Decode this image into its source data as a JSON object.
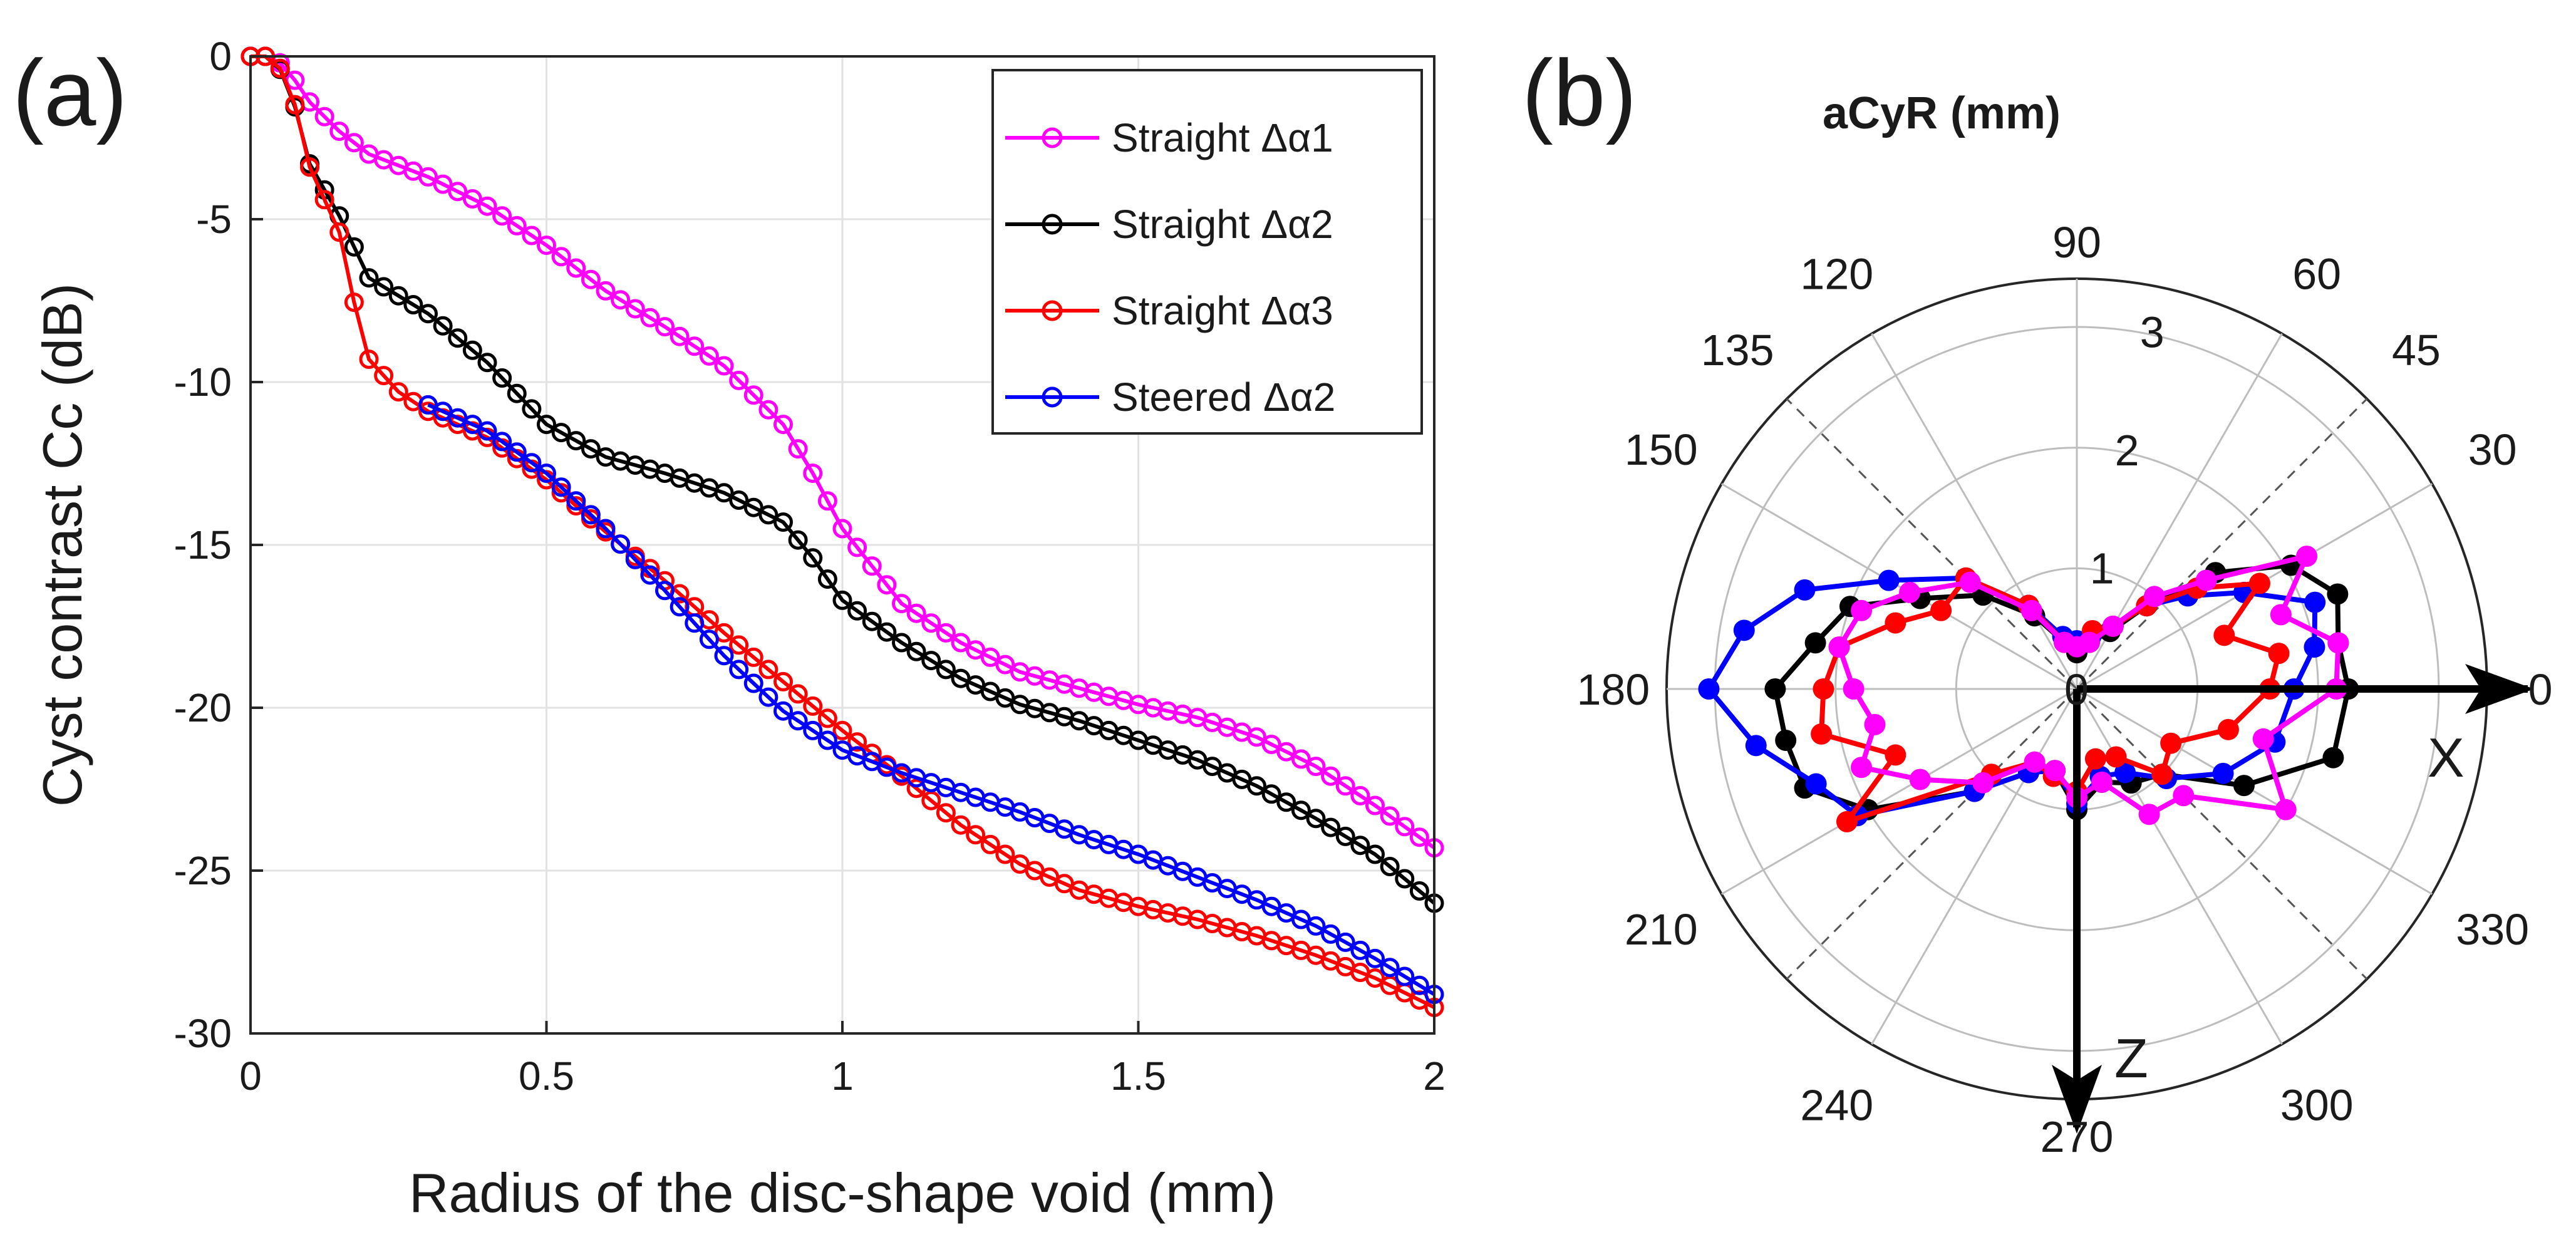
{
  "chart_data": [
    {
      "type": "line",
      "panel_label": "(a)",
      "title": "",
      "xlabel": "Radius of the disc-shape void (mm)",
      "ylabel": "Cyst contrast  Cc (dB)",
      "xlim": [
        0,
        2
      ],
      "ylim": [
        -30,
        0
      ],
      "grid": true,
      "xticks": [
        0,
        0.5,
        1,
        1.5,
        2
      ],
      "xtick_labels": [
        "0",
        "0.5",
        "1",
        "1.5",
        "2"
      ],
      "yticks": [
        0,
        -5,
        -10,
        -15,
        -20,
        -25,
        -30
      ],
      "ytick_labels": [
        "0",
        "-5",
        "-10",
        "-15",
        "-20",
        "-25",
        "-30"
      ],
      "legend_position": "top-right",
      "series": [
        {
          "name": "Straight Δα1",
          "color": "#ff00ff",
          "keypoints": [
            [
              0,
              0
            ],
            [
              0.04,
              0
            ],
            [
              0.07,
              -0.6
            ],
            [
              0.1,
              -1.4
            ],
            [
              0.15,
              -2.3
            ],
            [
              0.2,
              -3.0
            ],
            [
              0.3,
              -3.7
            ],
            [
              0.4,
              -4.6
            ],
            [
              0.5,
              -5.8
            ],
            [
              0.6,
              -7.2
            ],
            [
              0.7,
              -8.3
            ],
            [
              0.8,
              -9.5
            ],
            [
              0.9,
              -11.3
            ],
            [
              0.95,
              -12.8
            ],
            [
              1.0,
              -14.5
            ],
            [
              1.1,
              -16.8
            ],
            [
              1.2,
              -18.0
            ],
            [
              1.3,
              -18.9
            ],
            [
              1.4,
              -19.4
            ],
            [
              1.5,
              -19.9
            ],
            [
              1.6,
              -20.3
            ],
            [
              1.7,
              -20.9
            ],
            [
              1.8,
              -21.8
            ],
            [
              1.9,
              -23.0
            ],
            [
              2.0,
              -24.3
            ]
          ]
        },
        {
          "name": "Straight Δα2",
          "color": "#000000",
          "keypoints": [
            [
              0,
              0
            ],
            [
              0.04,
              0
            ],
            [
              0.07,
              -1.2
            ],
            [
              0.1,
              -3.3
            ],
            [
              0.15,
              -4.9
            ],
            [
              0.2,
              -6.8
            ],
            [
              0.3,
              -7.9
            ],
            [
              0.4,
              -9.4
            ],
            [
              0.5,
              -11.3
            ],
            [
              0.6,
              -12.3
            ],
            [
              0.7,
              -12.8
            ],
            [
              0.8,
              -13.4
            ],
            [
              0.9,
              -14.3
            ],
            [
              0.95,
              -15.4
            ],
            [
              1.0,
              -16.7
            ],
            [
              1.1,
              -18.0
            ],
            [
              1.2,
              -19.1
            ],
            [
              1.3,
              -19.9
            ],
            [
              1.4,
              -20.4
            ],
            [
              1.5,
              -21.0
            ],
            [
              1.6,
              -21.6
            ],
            [
              1.7,
              -22.4
            ],
            [
              1.8,
              -23.4
            ],
            [
              1.9,
              -24.5
            ],
            [
              2.0,
              -26.0
            ]
          ]
        },
        {
          "name": "Straight Δα3",
          "color": "#ff0000",
          "keypoints": [
            [
              0,
              0
            ],
            [
              0.04,
              0
            ],
            [
              0.07,
              -1.1
            ],
            [
              0.1,
              -3.4
            ],
            [
              0.15,
              -5.4
            ],
            [
              0.17,
              -7.2
            ],
            [
              0.2,
              -9.3
            ],
            [
              0.25,
              -10.3
            ],
            [
              0.3,
              -10.9
            ],
            [
              0.4,
              -11.7
            ],
            [
              0.5,
              -13.0
            ],
            [
              0.6,
              -14.6
            ],
            [
              0.7,
              -16.1
            ],
            [
              0.8,
              -17.7
            ],
            [
              0.9,
              -19.2
            ],
            [
              1.0,
              -20.7
            ],
            [
              1.1,
              -22.1
            ],
            [
              1.2,
              -23.6
            ],
            [
              1.3,
              -24.8
            ],
            [
              1.4,
              -25.6
            ],
            [
              1.5,
              -26.1
            ],
            [
              1.6,
              -26.5
            ],
            [
              1.7,
              -27.0
            ],
            [
              1.8,
              -27.6
            ],
            [
              1.9,
              -28.3
            ],
            [
              2.0,
              -29.2
            ]
          ]
        },
        {
          "name": "Steered Δα2",
          "color": "#0000ff",
          "keypoints": [
            [
              0.3,
              -10.7
            ],
            [
              0.4,
              -11.5
            ],
            [
              0.5,
              -12.8
            ],
            [
              0.6,
              -14.5
            ],
            [
              0.7,
              -16.4
            ],
            [
              0.8,
              -18.4
            ],
            [
              0.9,
              -20.1
            ],
            [
              1.0,
              -21.3
            ],
            [
              1.1,
              -22.0
            ],
            [
              1.2,
              -22.6
            ],
            [
              1.3,
              -23.2
            ],
            [
              1.4,
              -23.9
            ],
            [
              1.5,
              -24.5
            ],
            [
              1.6,
              -25.2
            ],
            [
              1.7,
              -25.9
            ],
            [
              1.8,
              -26.7
            ],
            [
              1.9,
              -27.7
            ],
            [
              2.0,
              -28.8
            ]
          ]
        }
      ]
    },
    {
      "type": "polar",
      "panel_label": "(b)",
      "title": "aCyR (mm)",
      "r_max": 3.4,
      "r_ticks": [
        1,
        2,
        3
      ],
      "r_tick_labels": [
        "1",
        "2",
        "3"
      ],
      "angle_labels": [
        "0",
        "30",
        "45",
        "60",
        "90",
        "120",
        "135",
        "150",
        "180",
        "210",
        "240",
        "270",
        "300",
        "330"
      ],
      "solid_spokes_deg": [
        0,
        30,
        60,
        90,
        120,
        150,
        180,
        210,
        240,
        270,
        300,
        330
      ],
      "dashed_spokes_deg": [
        45,
        135,
        225,
        315
      ],
      "axis_labels": {
        "x": "X",
        "z": "Z"
      },
      "series": [
        {
          "name": "Straight Δα2",
          "color": "#000000",
          "points": [
            [
              0,
              2.25
            ],
            [
              10,
              2.2
            ],
            [
              20,
              2.3
            ],
            [
              30,
              2.05
            ],
            [
              40,
              1.5
            ],
            [
              50,
              0.9
            ],
            [
              60,
              0.55
            ],
            [
              75,
              0.4
            ],
            [
              90,
              0.3
            ],
            [
              105,
              0.4
            ],
            [
              120,
              0.7
            ],
            [
              135,
              1.1
            ],
            [
              150,
              1.5
            ],
            [
              160,
              2.0
            ],
            [
              170,
              2.2
            ],
            [
              180,
              2.5
            ],
            [
              190,
              2.45
            ],
            [
              200,
              2.4
            ],
            [
              210,
              2.0
            ],
            [
              225,
              1.2
            ],
            [
              240,
              0.8
            ],
            [
              255,
              0.7
            ],
            [
              270,
              1.0
            ],
            [
              285,
              0.8
            ],
            [
              300,
              0.9
            ],
            [
              315,
              1.0
            ],
            [
              330,
              1.6
            ],
            [
              345,
              2.2
            ],
            [
              360,
              2.25
            ]
          ]
        },
        {
          "name": "Steered Δα2",
          "color": "#0000ff",
          "points": [
            [
              0,
              1.8
            ],
            [
              10,
              2.0
            ],
            [
              20,
              2.1
            ],
            [
              30,
              1.6
            ],
            [
              40,
              1.2
            ],
            [
              50,
              0.9
            ],
            [
              60,
              0.6
            ],
            [
              75,
              0.45
            ],
            [
              90,
              0.4
            ],
            [
              105,
              0.45
            ],
            [
              120,
              0.8
            ],
            [
              135,
              1.3
            ],
            [
              150,
              1.8
            ],
            [
              160,
              2.4
            ],
            [
              170,
              2.8
            ],
            [
              180,
              3.05
            ],
            [
              190,
              2.7
            ],
            [
              200,
              2.3
            ],
            [
              210,
              2.1
            ],
            [
              225,
              1.2
            ],
            [
              240,
              0.8
            ],
            [
              255,
              0.7
            ],
            [
              270,
              0.95
            ],
            [
              285,
              0.75
            ],
            [
              300,
              0.8
            ],
            [
              315,
              1.05
            ],
            [
              330,
              1.4
            ],
            [
              345,
              1.7
            ],
            [
              360,
              1.8
            ]
          ]
        },
        {
          "name": "Straight Δα3",
          "color": "#ff0000",
          "points": [
            [
              0,
              1.6
            ],
            [
              10,
              1.7
            ],
            [
              20,
              1.3
            ],
            [
              30,
              1.75
            ],
            [
              40,
              1.3
            ],
            [
              50,
              0.9
            ],
            [
              60,
              0.6
            ],
            [
              75,
              0.5
            ],
            [
              90,
              0.35
            ],
            [
              105,
              0.4
            ],
            [
              120,
              0.8
            ],
            [
              135,
              1.3
            ],
            [
              150,
              1.3
            ],
            [
              160,
              1.6
            ],
            [
              170,
              2.0
            ],
            [
              180,
              2.1
            ],
            [
              190,
              2.15
            ],
            [
              200,
              1.6
            ],
            [
              210,
              2.2
            ],
            [
              225,
              1.0
            ],
            [
              240,
              0.7
            ],
            [
              255,
              0.75
            ],
            [
              270,
              0.85
            ],
            [
              285,
              0.6
            ],
            [
              300,
              0.65
            ],
            [
              315,
              1.0
            ],
            [
              330,
              0.9
            ],
            [
              345,
              1.3
            ],
            [
              360,
              1.6
            ]
          ]
        },
        {
          "name": "Straight Δα1",
          "color": "#ff00ff",
          "points": [
            [
              0,
              2.15
            ],
            [
              10,
              2.2
            ],
            [
              20,
              1.8
            ],
            [
              30,
              2.2
            ],
            [
              40,
              1.4
            ],
            [
              50,
              1.0
            ],
            [
              60,
              0.6
            ],
            [
              75,
              0.4
            ],
            [
              90,
              0.35
            ],
            [
              105,
              0.4
            ],
            [
              120,
              0.75
            ],
            [
              135,
              1.25
            ],
            [
              150,
              1.6
            ],
            [
              160,
              1.9
            ],
            [
              170,
              2.0
            ],
            [
              180,
              1.85
            ],
            [
              190,
              1.7
            ],
            [
              200,
              1.9
            ],
            [
              210,
              1.5
            ],
            [
              225,
              1.1
            ],
            [
              240,
              0.7
            ],
            [
              255,
              0.7
            ],
            [
              270,
              0.9
            ],
            [
              285,
              0.8
            ],
            [
              300,
              1.2
            ],
            [
              315,
              1.25
            ],
            [
              330,
              2.0
            ],
            [
              345,
              1.6
            ],
            [
              360,
              2.15
            ]
          ]
        }
      ]
    }
  ]
}
